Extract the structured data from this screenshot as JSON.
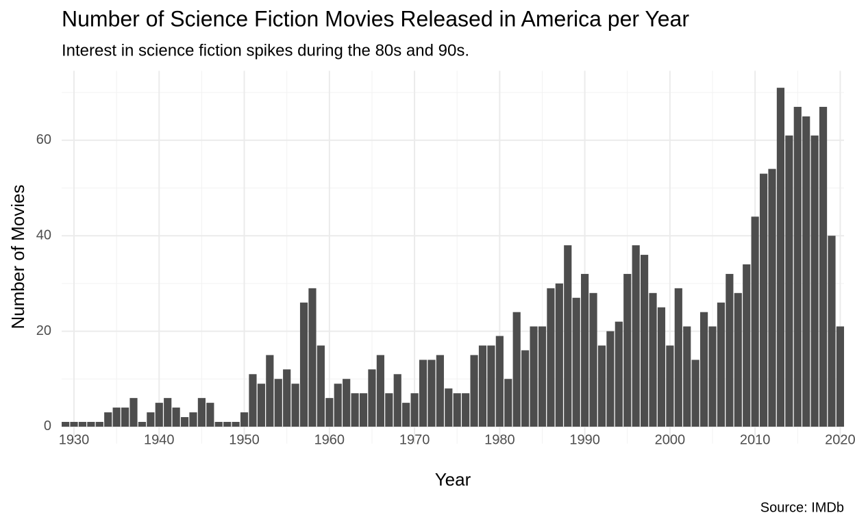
{
  "chart_data": {
    "type": "bar",
    "title": "Number of Science Fiction Movies Released in America per Year",
    "subtitle": "Interest in science fiction spikes during the 80s and 90s.",
    "x_label": "Year",
    "y_label": "Number of Movies",
    "caption": "Source: IMDb",
    "x": [
      1929,
      1930,
      1931,
      1932,
      1933,
      1934,
      1935,
      1936,
      1937,
      1938,
      1939,
      1940,
      1941,
      1942,
      1943,
      1944,
      1945,
      1946,
      1947,
      1948,
      1949,
      1950,
      1951,
      1952,
      1953,
      1954,
      1955,
      1956,
      1957,
      1958,
      1959,
      1960,
      1961,
      1962,
      1963,
      1964,
      1965,
      1966,
      1967,
      1968,
      1969,
      1970,
      1971,
      1972,
      1973,
      1974,
      1975,
      1976,
      1977,
      1978,
      1979,
      1980,
      1981,
      1982,
      1983,
      1984,
      1985,
      1986,
      1987,
      1988,
      1989,
      1990,
      1991,
      1992,
      1993,
      1994,
      1995,
      1996,
      1997,
      1998,
      1999,
      2000,
      2001,
      2002,
      2003,
      2004,
      2005,
      2006,
      2007,
      2008,
      2009,
      2010,
      2011,
      2012,
      2013,
      2014,
      2015,
      2016,
      2017,
      2018,
      2019,
      2020
    ],
    "values": [
      1,
      1,
      1,
      1,
      1,
      3,
      4,
      4,
      6,
      1,
      3,
      5,
      6,
      4,
      2,
      3,
      6,
      5,
      1,
      1,
      1,
      3,
      11,
      9,
      15,
      10,
      12,
      9,
      26,
      29,
      17,
      6,
      9,
      10,
      7,
      7,
      12,
      15,
      7,
      11,
      5,
      7,
      14,
      14,
      15,
      8,
      7,
      7,
      15,
      17,
      17,
      19,
      10,
      24,
      16,
      21,
      21,
      29,
      30,
      38,
      27,
      32,
      28,
      17,
      20,
      22,
      32,
      38,
      36,
      28,
      25,
      17,
      29,
      21,
      14,
      24,
      21,
      26,
      32,
      28,
      34,
      44,
      53,
      54,
      71,
      61,
      67,
      65,
      61,
      67,
      40,
      21
    ],
    "color": "#4d4d4d",
    "xlim": [
      1928.55,
      2020.45
    ],
    "xticks": [
      1930,
      1940,
      1950,
      1960,
      1970,
      1980,
      1990,
      2000,
      2010,
      2020
    ],
    "xminor": [
      1935,
      1945,
      1955,
      1965,
      1975,
      1985,
      1995,
      2005,
      2015
    ],
    "ylim": [
      -3.55,
      74.55
    ],
    "yticks": [
      0,
      20,
      40,
      60
    ],
    "yminor": [
      10,
      30,
      50,
      70
    ],
    "grid": true
  }
}
